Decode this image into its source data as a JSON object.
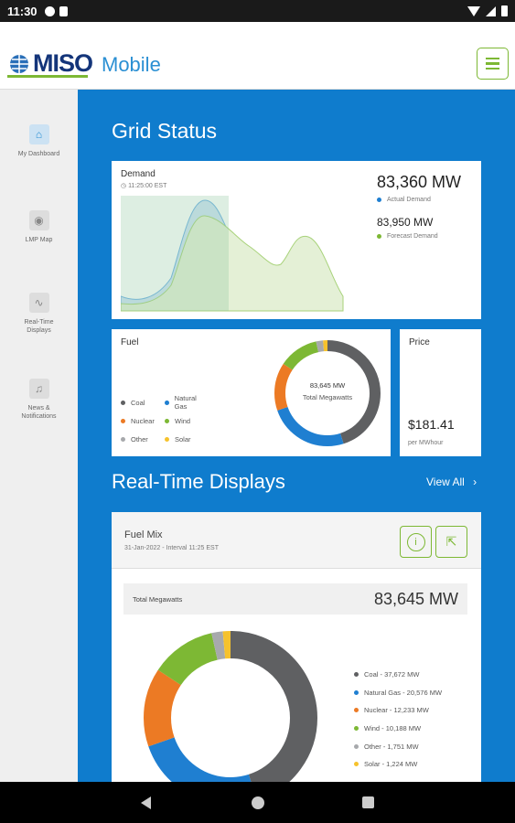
{
  "status_bar": {
    "time": "11:30"
  },
  "app": {
    "logo_text": "MISO",
    "subtitle": "Mobile"
  },
  "sidebar": {
    "items": [
      {
        "label": "My Dashboard",
        "icon": "home-icon"
      },
      {
        "label": "LMP Map",
        "icon": "map-pin-icon"
      },
      {
        "label": "Real-Time Displays",
        "icon": "pulse-icon"
      },
      {
        "label": "News & Notifications",
        "icon": "bell-icon"
      }
    ]
  },
  "grid_status": {
    "title": "Grid Status",
    "demand": {
      "label": "Demand",
      "time": "11:25:00 EST",
      "actual_value": "83,360 MW",
      "actual_label": "Actual Demand",
      "forecast_value": "83,950 MW",
      "forecast_label": "Forecast Demand"
    },
    "fuel": {
      "label": "Fuel",
      "center_value": "83,645 MW",
      "center_label": "Total Megawatts",
      "legend": [
        "Coal",
        "Natural Gas",
        "Nuclear",
        "Wind",
        "Other",
        "Solar"
      ]
    },
    "price": {
      "label": "Price",
      "value": "$181.41",
      "unit": "per MWhour"
    }
  },
  "real_time": {
    "title": "Real-Time Displays",
    "view_all": "View All",
    "fuel_mix": {
      "title": "Fuel Mix",
      "subtitle": "31-Jan-2022 - Interval 11:25 EST",
      "total_label": "Total Megawatts",
      "total_value": "83,645 MW",
      "legend": [
        "Coal - 37,672 MW",
        "Natural Gas - 20,576 MW",
        "Nuclear - 12,233 MW",
        "Wind - 10,188 MW",
        "Other - 1,751 MW",
        "Solar - 1,224 MW"
      ]
    }
  },
  "colors": {
    "coal": "#5f6062",
    "natural_gas": "#1f7fd1",
    "nuclear": "#ec7a24",
    "wind": "#7db834",
    "other": "#a7a9ac",
    "solar": "#f6c22c",
    "brand_blue": "#0f7ccd"
  },
  "chart_data": [
    {
      "type": "pie",
      "title": "Fuel Mix",
      "categories": [
        "Coal",
        "Natural Gas",
        "Nuclear",
        "Wind",
        "Other",
        "Solar"
      ],
      "values": [
        37672,
        20576,
        12233,
        10188,
        1751,
        1224
      ]
    },
    {
      "type": "area",
      "title": "Demand",
      "series": [
        {
          "name": "Actual Demand"
        },
        {
          "name": "Forecast Demand"
        }
      ]
    }
  ]
}
